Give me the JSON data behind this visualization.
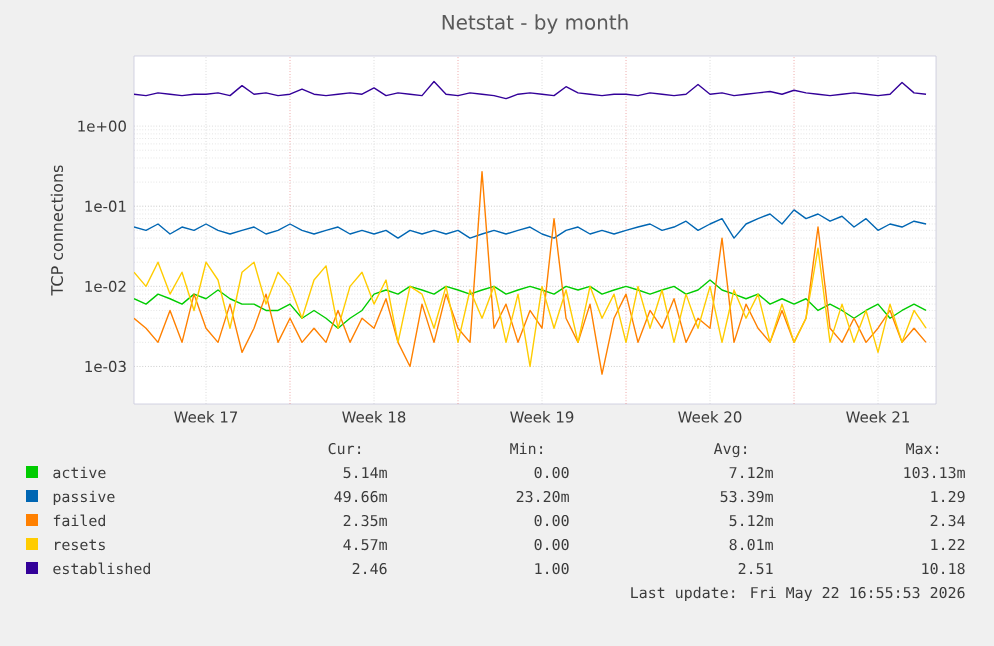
{
  "chart_data": {
    "type": "line",
    "title": "Netstat - by month",
    "ylabel": "TCP connections",
    "log": true,
    "grid": true,
    "legend": "bottom",
    "xlim": [
      "2026-04-20T12:00",
      "2026-05-23T22:00"
    ],
    "ylim": [
      0.00034,
      7.5
    ],
    "xticks": [
      {
        "value": "2026-04-23T12:00",
        "label": "Week 17"
      },
      {
        "value": "2026-04-27",
        "label": null
      },
      {
        "value": "2026-04-30T12:00",
        "label": "Week 18"
      },
      {
        "value": "2026-05-04",
        "label": null
      },
      {
        "value": "2026-05-07T12:00",
        "label": "Week 19"
      },
      {
        "value": "2026-05-11",
        "label": null
      },
      {
        "value": "2026-05-14T12:00",
        "label": "Week 20"
      },
      {
        "value": "2026-05-18",
        "label": null
      },
      {
        "value": "2026-05-21T12:00",
        "label": "Week 21"
      }
    ],
    "yticks": [
      {
        "value": 0.001,
        "label": "1e-03"
      },
      {
        "value": 0.01,
        "label": "1e-02"
      },
      {
        "value": 0.1,
        "label": "1e-01"
      },
      {
        "value": 1,
        "label": "1e+00"
      }
    ],
    "x": [
      "2026-04-20T12:00",
      "2026-04-21T00:00",
      "2026-04-21T12:00",
      "2026-04-22T00:00",
      "2026-04-22T12:00",
      "2026-04-23T00:00",
      "2026-04-23T12:00",
      "2026-04-24T00:00",
      "2026-04-24T12:00",
      "2026-04-25T00:00",
      "2026-04-25T12:00",
      "2026-04-26T00:00",
      "2026-04-26T12:00",
      "2026-04-27T00:00",
      "2026-04-27T12:00",
      "2026-04-28T00:00",
      "2026-04-28T12:00",
      "2026-04-29T00:00",
      "2026-04-29T12:00",
      "2026-04-30T00:00",
      "2026-04-30T12:00",
      "2026-05-01T00:00",
      "2026-05-01T12:00",
      "2026-05-02T00:00",
      "2026-05-02T12:00",
      "2026-05-03T00:00",
      "2026-05-03T12:00",
      "2026-05-04T00:00",
      "2026-05-04T12:00",
      "2026-05-05T00:00",
      "2026-05-05T12:00",
      "2026-05-06T00:00",
      "2026-05-06T12:00",
      "2026-05-07T00:00",
      "2026-05-07T12:00",
      "2026-05-08T00:00",
      "2026-05-08T12:00",
      "2026-05-09T00:00",
      "2026-05-09T12:00",
      "2026-05-10T00:00",
      "2026-05-10T12:00",
      "2026-05-11T00:00",
      "2026-05-11T12:00",
      "2026-05-12T00:00",
      "2026-05-12T12:00",
      "2026-05-13T00:00",
      "2026-05-13T12:00",
      "2026-05-14T00:00",
      "2026-05-14T12:00",
      "2026-05-15T00:00",
      "2026-05-15T12:00",
      "2026-05-16T00:00",
      "2026-05-16T12:00",
      "2026-05-17T00:00",
      "2026-05-17T12:00",
      "2026-05-18T00:00",
      "2026-05-18T12:00",
      "2026-05-19T00:00",
      "2026-05-19T12:00",
      "2026-05-20T00:00",
      "2026-05-20T12:00",
      "2026-05-21T00:00",
      "2026-05-21T12:00",
      "2026-05-22T00:00",
      "2026-05-22T12:00",
      "2026-05-23T00:00",
      "2026-05-23T12:00"
    ],
    "series": [
      {
        "name": "active",
        "color": "#00cc00",
        "values": [
          0.007,
          0.006,
          0.008,
          0.007,
          0.006,
          0.008,
          0.007,
          0.009,
          0.007,
          0.006,
          0.006,
          0.005,
          0.005,
          0.006,
          0.004,
          0.005,
          0.004,
          0.003,
          0.004,
          0.005,
          0.008,
          0.009,
          0.008,
          0.01,
          0.009,
          0.008,
          0.01,
          0.009,
          0.008,
          0.009,
          0.01,
          0.008,
          0.009,
          0.01,
          0.009,
          0.008,
          0.01,
          0.009,
          0.01,
          0.008,
          0.009,
          0.01,
          0.009,
          0.008,
          0.009,
          0.01,
          0.008,
          0.009,
          0.012,
          0.009,
          0.008,
          0.007,
          0.008,
          0.006,
          0.007,
          0.006,
          0.007,
          0.005,
          0.006,
          0.005,
          0.004,
          0.005,
          0.006,
          0.004,
          0.005,
          0.006,
          0.005
        ]
      },
      {
        "name": "passive",
        "color": "#0066b3",
        "values": [
          0.055,
          0.05,
          0.06,
          0.045,
          0.055,
          0.05,
          0.06,
          0.05,
          0.045,
          0.05,
          0.055,
          0.045,
          0.05,
          0.06,
          0.05,
          0.045,
          0.05,
          0.055,
          0.045,
          0.05,
          0.045,
          0.05,
          0.04,
          0.05,
          0.045,
          0.05,
          0.045,
          0.05,
          0.04,
          0.045,
          0.05,
          0.045,
          0.05,
          0.055,
          0.045,
          0.04,
          0.05,
          0.055,
          0.045,
          0.05,
          0.045,
          0.05,
          0.055,
          0.06,
          0.05,
          0.055,
          0.065,
          0.05,
          0.06,
          0.07,
          0.04,
          0.06,
          0.07,
          0.08,
          0.06,
          0.09,
          0.07,
          0.08,
          0.065,
          0.075,
          0.055,
          0.07,
          0.05,
          0.06,
          0.055,
          0.065,
          0.06
        ]
      },
      {
        "name": "failed",
        "color": "#ff8000",
        "values": [
          0.004,
          0.003,
          0.002,
          0.005,
          0.002,
          0.008,
          0.003,
          0.002,
          0.006,
          0.0015,
          0.003,
          0.008,
          0.002,
          0.004,
          0.002,
          0.003,
          0.002,
          0.005,
          0.002,
          0.004,
          0.003,
          0.007,
          0.002,
          0.001,
          0.006,
          0.002,
          0.008,
          0.003,
          0.002,
          0.27,
          0.003,
          0.006,
          0.002,
          0.005,
          0.003,
          0.07,
          0.004,
          0.002,
          0.006,
          0.0008,
          0.004,
          0.008,
          0.002,
          0.005,
          0.003,
          0.007,
          0.002,
          0.004,
          0.003,
          0.04,
          0.002,
          0.006,
          0.003,
          0.002,
          0.005,
          0.002,
          0.004,
          0.055,
          0.003,
          0.002,
          0.004,
          0.002,
          0.003,
          0.005,
          0.002,
          0.003,
          0.002
        ]
      },
      {
        "name": "resets",
        "color": "#ffcc00",
        "values": [
          0.015,
          0.01,
          0.02,
          0.008,
          0.015,
          0.005,
          0.02,
          0.012,
          0.003,
          0.015,
          0.02,
          0.006,
          0.015,
          0.01,
          0.004,
          0.012,
          0.018,
          0.003,
          0.01,
          0.015,
          0.006,
          0.012,
          0.002,
          0.01,
          0.008,
          0.003,
          0.01,
          0.002,
          0.009,
          0.004,
          0.01,
          0.002,
          0.008,
          0.001,
          0.01,
          0.003,
          0.009,
          0.002,
          0.01,
          0.004,
          0.008,
          0.002,
          0.01,
          0.003,
          0.009,
          0.002,
          0.008,
          0.003,
          0.01,
          0.002,
          0.009,
          0.004,
          0.008,
          0.002,
          0.006,
          0.002,
          0.004,
          0.03,
          0.002,
          0.006,
          0.002,
          0.005,
          0.0015,
          0.006,
          0.002,
          0.005,
          0.003
        ]
      },
      {
        "name": "established",
        "color": "#330099",
        "values": [
          2.5,
          2.4,
          2.6,
          2.5,
          2.4,
          2.5,
          2.5,
          2.6,
          2.4,
          3.2,
          2.5,
          2.6,
          2.4,
          2.5,
          2.9,
          2.5,
          2.4,
          2.5,
          2.6,
          2.5,
          3.0,
          2.4,
          2.6,
          2.5,
          2.4,
          3.6,
          2.5,
          2.4,
          2.6,
          2.5,
          2.4,
          2.2,
          2.5,
          2.6,
          2.5,
          2.4,
          3.1,
          2.6,
          2.5,
          2.4,
          2.5,
          2.5,
          2.4,
          2.6,
          2.5,
          2.4,
          2.5,
          3.3,
          2.5,
          2.6,
          2.4,
          2.5,
          2.6,
          2.7,
          2.5,
          2.8,
          2.6,
          2.5,
          2.4,
          2.5,
          2.6,
          2.5,
          2.4,
          2.5,
          3.5,
          2.6,
          2.5
        ]
      }
    ],
    "annotations": [
      "Cur:",
      "Min:",
      "Avg:",
      "Max:",
      "5.14m",
      "0.00",
      "7.12m",
      "103.13m",
      "49.66m",
      "23.20m",
      "53.39m",
      "1.29",
      "2.35m",
      "0.00",
      "5.12m",
      "2.34",
      "4.57m",
      "0.00",
      "8.01m",
      "1.22",
      "2.46",
      "1.00",
      "2.51",
      "10.18",
      "Last update: Fri May 22 16:55:53 2026"
    ]
  }
}
